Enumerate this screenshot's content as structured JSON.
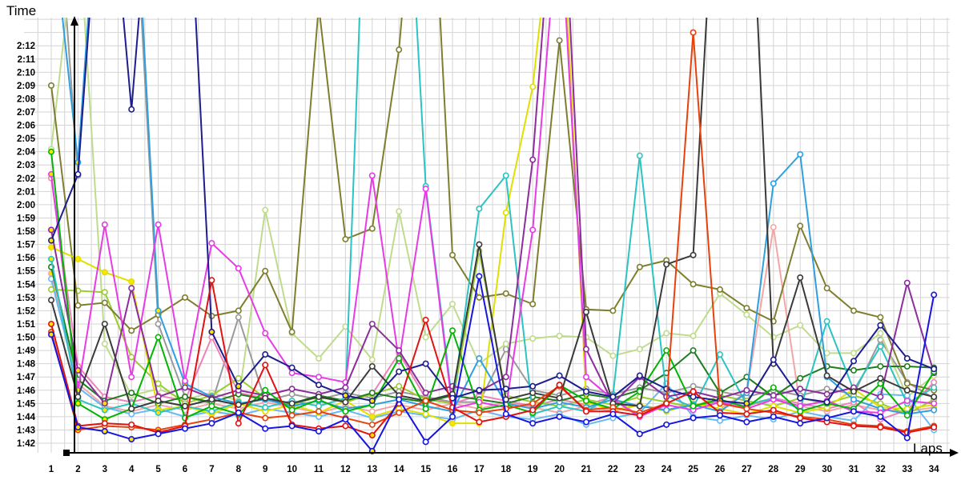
{
  "chart_data": {
    "type": "line",
    "title": "",
    "xlabel": "Laps",
    "ylabel": "Time",
    "x": [
      1,
      2,
      3,
      4,
      5,
      6,
      7,
      8,
      9,
      10,
      11,
      12,
      13,
      14,
      15,
      16,
      17,
      18,
      19,
      20,
      21,
      22,
      23,
      24,
      25,
      26,
      27,
      28,
      29,
      30,
      31,
      32,
      33,
      34
    ],
    "x_tick_labels": [
      "1",
      "2",
      "3",
      "4",
      "5",
      "6",
      "7",
      "8",
      "9",
      "10",
      "11",
      "12",
      "13",
      "14",
      "15",
      "16",
      "17",
      "18",
      "19",
      "20",
      "21",
      "22",
      "23",
      "24",
      "25",
      "26",
      "27",
      "28",
      "29",
      "30",
      "31",
      "32",
      "33",
      "34"
    ],
    "y_tick_labels": [
      "1:42",
      "1:43",
      "1:44",
      "1:45",
      "1:46",
      "1:47",
      "1:48",
      "1:49",
      "1:50",
      "1:51",
      "1:52",
      "1:53",
      "1:54",
      "1:55",
      "1:56",
      "1:57",
      "1:58",
      "1:59",
      "2:00",
      "2:01",
      "2:02",
      "2:03",
      "2:04",
      "2:05",
      "2:06",
      "2:07",
      "2:08",
      "2:09",
      "2:10",
      "2:11",
      "2:12"
    ],
    "y_range_seconds": [
      102,
      132
    ],
    "grid": "on",
    "legend": "none",
    "units": "minutes:seconds per lap, values below stored as total seconds (102 = 1:42); values above 134 are off-scale spikes clipped at the top of the plot",
    "marker_colors": {
      "default_fill": "#ffffff",
      "best_lap_fill": "#ffe400"
    },
    "series": [
      {
        "name": "gray",
        "color": "#9a9a9a",
        "pb": false,
        "values": [
          150,
          122.2,
          152,
          148,
          111,
          105.5,
          105,
          111.5,
          105.2,
          105.7,
          105.3,
          105.8,
          105.4,
          105.9,
          105.5,
          105.1,
          105.1,
          109.1,
          106,
          105.6,
          106.1,
          105.7,
          106.2,
          105.8,
          106.3,
          105.9,
          105.5,
          106,
          105.6,
          106.1,
          105.7,
          109.8,
          106.6,
          105.4
        ]
      },
      {
        "name": "palegreen",
        "color": "#bedc8c",
        "pb": false,
        "values": [
          124.2,
          142,
          109.5,
          105.6,
          106.1,
          105.3,
          105.8,
          105.2,
          119.6,
          110.3,
          108.4,
          110.8,
          108.3,
          119.5,
          110,
          112.5,
          108,
          109.5,
          109.9,
          110.1,
          110,
          108.6,
          109.1,
          110.3,
          110.1,
          113.3,
          111.7,
          110,
          110.9,
          108.8,
          108.8,
          110.3,
          105.5,
          107.1
        ]
      },
      {
        "name": "salmon",
        "color": "#f2a6a6",
        "pb": true,
        "values": [
          114.8,
          106.5,
          104.8,
          104.4,
          104.9,
          104.5,
          105,
          104.6,
          105.1,
          104.7,
          104.3,
          104.8,
          104.4,
          104.9,
          104.5,
          105,
          104.6,
          105.1,
          104.7,
          104.3,
          104.8,
          104.4,
          104.9,
          104.5,
          105,
          104.6,
          105.8,
          118.3,
          104.8,
          104.4,
          104.9,
          104.5,
          104.4,
          104.7
        ]
      },
      {
        "name": "pink",
        "color": "#ef82b6",
        "pb": false,
        "values": [
          122,
          107.8,
          105.5,
          105.1,
          105.6,
          105.2,
          110,
          105.8,
          105.4,
          105,
          105.5,
          105.1,
          105.7,
          108.8,
          105.4,
          105,
          105.6,
          105.2,
          104.8,
          105.3,
          104.9,
          105.5,
          104,
          105.1,
          104.7,
          105.2,
          104.8,
          105.4,
          105,
          104.6,
          105.1,
          103.8,
          104.5,
          106.6
        ]
      },
      {
        "name": "lightblue",
        "color": "#66b9f2",
        "pb": false,
        "values": [
          114.4,
          106.2,
          104.7,
          104.2,
          104.6,
          104,
          104.4,
          104.1,
          104.6,
          104.3,
          104,
          104.5,
          103.9,
          104.4,
          104.1,
          103.8,
          104.5,
          104,
          103.8,
          104.2,
          103.4,
          103.9,
          104.3,
          106.5,
          104,
          103.7,
          104.1,
          103.8,
          104.4,
          104,
          103.7,
          105.7,
          105.6,
          103
        ]
      },
      {
        "name": "yellowgreen",
        "color": "#9acd32",
        "pb": false,
        "values": [
          113.6,
          113.5,
          113.4,
          108.5,
          106.5,
          105,
          105.6,
          106.9,
          105.4,
          104.9,
          105.5,
          105.1,
          105.7,
          106.3,
          105.3,
          105,
          116.5,
          105.6,
          105.1,
          104.8,
          105.3,
          104.9,
          105.5,
          105.1,
          104.7,
          105.6,
          105.2,
          104.8,
          105.4,
          105,
          105.6,
          105,
          104.2,
          105.3
        ]
      },
      {
        "name": "darkgreen",
        "color": "#1e7d1e",
        "pb": false,
        "values": [
          115.3,
          106.8,
          105.2,
          105.8,
          105,
          105.5,
          105.1,
          105.7,
          105.3,
          105,
          105.6,
          105.2,
          105.8,
          105.4,
          105.1,
          105.6,
          105.3,
          105,
          105.5,
          105.2,
          105.7,
          105.4,
          106,
          107.3,
          109,
          105.8,
          107,
          105.5,
          106.9,
          107.8,
          107.5,
          107.8,
          107.8,
          107.7
        ]
      },
      {
        "name": "olive",
        "color": "#7e7e2e",
        "pb": false,
        "values": [
          129,
          112.4,
          112.6,
          110.5,
          111.7,
          113,
          111.6,
          112,
          115,
          110.4,
          135,
          117.4,
          118.2,
          131.7,
          155,
          116.2,
          113,
          113.3,
          112.5,
          132.4,
          112.1,
          112,
          115.3,
          115.8,
          114,
          113.6,
          112.2,
          111.2,
          118.4,
          113.7,
          112,
          111.5,
          106.5,
          106
        ]
      },
      {
        "name": "yellow",
        "color": "#e0e000",
        "pb": true,
        "values": [
          116.8,
          115.9,
          114.9,
          114.2,
          104.5,
          104.8,
          104.2,
          105,
          104.4,
          104.9,
          104.3,
          105.2,
          104,
          104.6,
          104.2,
          103.5,
          103.5,
          119.4,
          128.9,
          147,
          105.1,
          104.5,
          104.9,
          104.4,
          105,
          104.6,
          104.2,
          104.8,
          104.3,
          104.7,
          106.1,
          104.7,
          104.6,
          104.9
        ]
      },
      {
        "name": "teal",
        "color": "#2cc3c3",
        "pb": true,
        "values": [
          115.9,
          105.3,
          104.5,
          105,
          104.3,
          104.8,
          104.4,
          105.1,
          104.7,
          105.2,
          104.8,
          105.4,
          160,
          158,
          121.4,
          105,
          119.7,
          122.2,
          104.2,
          104.8,
          104.4,
          105.6,
          123.7,
          105.6,
          104.7,
          108.7,
          104.9,
          105.4,
          104.6,
          111.2,
          106,
          109.3,
          105,
          106.2
        ]
      },
      {
        "name": "sky",
        "color": "#2f9fe0",
        "pb": true,
        "values": [
          142,
          123.2,
          152,
          150,
          112,
          106.5,
          105.5,
          105,
          105.3,
          104.8,
          105.2,
          104.6,
          104.9,
          105.3,
          104.8,
          104.4,
          108.4,
          105,
          104.6,
          105.1,
          104.7,
          105.3,
          104.8,
          104.5,
          104.9,
          104.4,
          105.8,
          121.6,
          123.8,
          107,
          105.3,
          104.6,
          104.2,
          104.5
        ]
      },
      {
        "name": "magenta",
        "color": "#e53ce5",
        "pb": true,
        "values": [
          122.3,
          106,
          118.5,
          107,
          118.5,
          106.7,
          117.1,
          115.2,
          110.3,
          107.3,
          107,
          106.6,
          122.2,
          108.2,
          121.2,
          104.6,
          105.1,
          104.7,
          118.1,
          143,
          107,
          105.3,
          104,
          104.9,
          104.5,
          105.1,
          104.6,
          105.3,
          104.8,
          105.2,
          104.4,
          104.3,
          105.2,
          105
        ]
      },
      {
        "name": "purple",
        "color": "#8c2d9c",
        "pb": true,
        "values": [
          118.1,
          107.5,
          105,
          113.7,
          105.5,
          106.2,
          105.4,
          106,
          105.6,
          106.1,
          105.7,
          106.2,
          111,
          109,
          105.8,
          106.3,
          105.9,
          107,
          123.4,
          150,
          109.1,
          105,
          107,
          105.5,
          105.9,
          105.4,
          106,
          105.6,
          106.1,
          105.7,
          106.2,
          105.5,
          114.1,
          107.3
        ]
      },
      {
        "name": "green",
        "color": "#04b404",
        "pb": true,
        "values": [
          124,
          105,
          103.8,
          104.6,
          110,
          103.9,
          104.8,
          104.2,
          106,
          104.5,
          105.3,
          104.4,
          104.9,
          108.4,
          104.6,
          110.5,
          104.5,
          104.9,
          104.3,
          106.4,
          105.2,
          104.6,
          105.9,
          109,
          104.8,
          105.3,
          104.7,
          106.2,
          104.4,
          105,
          104.6,
          106.5,
          104.1,
          107.4
        ]
      },
      {
        "name": "black",
        "color": "#3a3a3a",
        "pb": false,
        "values": [
          112.8,
          105.5,
          111,
          104.6,
          105.2,
          104.8,
          105.3,
          104.9,
          105.4,
          105,
          105.5,
          105.1,
          107.8,
          105.6,
          105.2,
          105.7,
          117,
          105.3,
          105.8,
          105.4,
          111.9,
          105,
          104.8,
          115.5,
          116.2,
          152,
          152,
          108,
          114.5,
          107.1,
          105.9,
          106.9,
          106,
          105.5
        ]
      },
      {
        "name": "navy",
        "color": "#1d1d8f",
        "pb": true,
        "values": [
          117.3,
          122.3,
          150,
          127.2,
          152,
          150,
          110.4,
          106.3,
          108.7,
          107.7,
          106.4,
          105.6,
          105.2,
          107.4,
          108,
          105.4,
          106,
          106.1,
          106.3,
          107.1,
          105.9,
          105.5,
          107.1,
          106.1,
          105.5,
          105.2,
          105,
          108.3,
          105.4,
          105.1,
          108.2,
          110.9,
          108.4,
          107.6
        ]
      },
      {
        "name": "orangered",
        "color": "#e8410c",
        "pb": true,
        "values": [
          110.4,
          103,
          103.3,
          103.2,
          103,
          103.4,
          103.8,
          104.3,
          103.9,
          104.1,
          104.4,
          103.9,
          103.4,
          104.3,
          105.2,
          104.5,
          104.3,
          104.6,
          105,
          106.3,
          104.5,
          104.7,
          104.3,
          105,
          133,
          105,
          104.6,
          104.3,
          104,
          103.8,
          103.4,
          103.3,
          102.9,
          103.3
        ]
      },
      {
        "name": "red",
        "color": "#e01212",
        "pb": true,
        "values": [
          111,
          103.3,
          103.5,
          103.4,
          102.8,
          103.3,
          114.3,
          103.5,
          107.9,
          103.4,
          103.1,
          103.3,
          102.6,
          105,
          111.3,
          104.7,
          103.6,
          104,
          104.5,
          106.4,
          104.4,
          104.4,
          104.1,
          105,
          105.9,
          104.3,
          104.2,
          104.5,
          103.9,
          103.6,
          103.3,
          103.2,
          102.8,
          103.2
        ]
      },
      {
        "name": "blue",
        "color": "#1616e0",
        "pb": true,
        "values": [
          110.2,
          103.2,
          102.9,
          102.3,
          102.7,
          103.1,
          103.5,
          104.3,
          103.1,
          103.3,
          102.9,
          103.8,
          101.4,
          105.3,
          102.1,
          104,
          114.6,
          104.2,
          103.5,
          104,
          103.6,
          104.2,
          102.7,
          103.4,
          103.9,
          104.1,
          103.6,
          104,
          103.5,
          103.9,
          104.4,
          104,
          102.4,
          113.2
        ]
      }
    ]
  }
}
